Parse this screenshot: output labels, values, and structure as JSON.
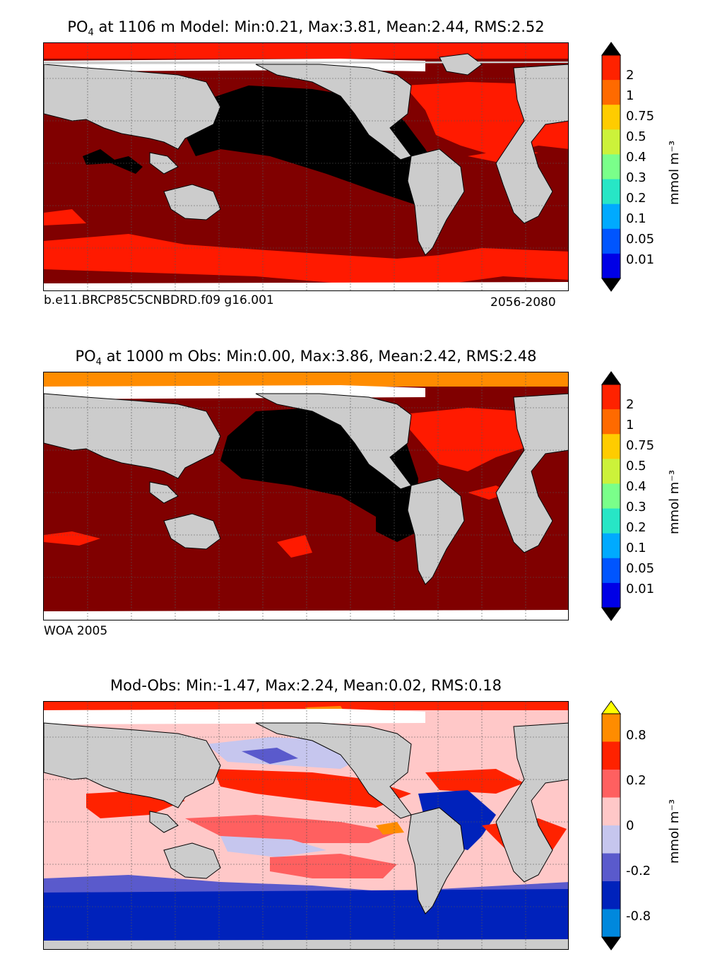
{
  "panels": [
    {
      "id": "model",
      "title_pre": "PO",
      "title_sub": "4",
      "title_post": "  at 1106 m Model: Min:0.21, Max:3.81, Mean:2.44, RMS:2.52",
      "caption_left": "b.e11.BRCP85C5CNBDRD.f09 g16.001",
      "caption_right": "2056-2080",
      "unit": "mmol m⁻³",
      "colorbar_ticks": [
        "2",
        "1",
        "0.75",
        "0.5",
        "0.4",
        "0.3",
        "0.2",
        "0.1",
        "0.05",
        "0.01"
      ],
      "colorbar_colors": [
        "#800000",
        "#ff2200",
        "#ff6a00",
        "#ffcc00",
        "#ccf23a",
        "#7aff8a",
        "#27e6c6",
        "#00aaff",
        "#0055ff",
        "#0000e6",
        "#000080"
      ]
    },
    {
      "id": "obs",
      "title_pre": "PO",
      "title_sub": "4",
      "title_post": "  at 1000 m Obs: Min:0.00, Max:3.86, Mean:2.42, RMS:2.48",
      "caption_left": "WOA 2005",
      "caption_right": "",
      "unit": "mmol m⁻³",
      "colorbar_ticks": [
        "2",
        "1",
        "0.75",
        "0.5",
        "0.4",
        "0.3",
        "0.2",
        "0.1",
        "0.05",
        "0.01"
      ],
      "colorbar_colors": [
        "#800000",
        "#ff2200",
        "#ff6a00",
        "#ffcc00",
        "#ccf23a",
        "#7aff8a",
        "#27e6c6",
        "#00aaff",
        "#0055ff",
        "#0000e6",
        "#000080"
      ]
    },
    {
      "id": "diff",
      "title_pre": "Mod-Obs: Min:-1.47, Max:2.24, Mean:0.02, RMS:0.18",
      "title_sub": "",
      "title_post": "",
      "caption_left": "",
      "caption_right": "",
      "unit": "mmol m⁻³",
      "colorbar_ticks": [
        "0.8",
        "0.2",
        "0",
        "-0.2",
        "-0.8"
      ],
      "colorbar_colors": [
        "#ffff00",
        "#ff8c00",
        "#ff2200",
        "#ff6060",
        "#ffc8c8",
        "#c6c6ee",
        "#5a5acc",
        "#0022bb",
        "#0088dd",
        "#00ffff"
      ]
    }
  ],
  "colors": {
    "land": "#cccccc",
    "missing": "#ffffff",
    "black_region": "#000000",
    "dark_red": "#800000",
    "red": "#ff1a00"
  }
}
